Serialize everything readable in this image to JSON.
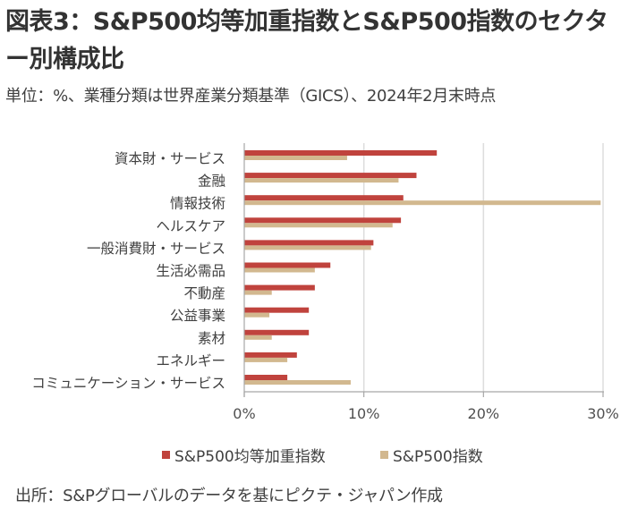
{
  "title": "図表3：S&P500均等加重指数とS&P500指数のセクター別構成比",
  "subtitle": "単位：%、業種分類は世界産業分類基準（GICS）、2024年2月末時点",
  "source": "出所：S&Pグローバルのデータを基にピクテ・ジャパン作成",
  "colors": {
    "equal_weight": "#C0433D",
    "cap_weight": "#D2B88F",
    "grid": "#DDDDDD",
    "axis": "#A6A6A6"
  },
  "chart_data": {
    "type": "bar",
    "orientation": "horizontal",
    "title": "S&P500均等加重指数とS&P500指数のセクター別構成比",
    "xlabel": "",
    "ylabel": "",
    "unit": "%",
    "xlim": [
      0,
      30
    ],
    "xticks": [
      0,
      10,
      20,
      30
    ],
    "xtick_labels": [
      "0%",
      "10%",
      "20%",
      "30%"
    ],
    "grid": "vertical",
    "legend_position": "bottom",
    "categories": [
      "資本財・サービス",
      "金融",
      "情報技術",
      "ヘルスケア",
      "一般消費財・サービス",
      "生活必需品",
      "不動産",
      "公益事業",
      "素材",
      "エネルギー",
      "コミュニケーション・サービス"
    ],
    "series": [
      {
        "name": "S&P500均等加重指数",
        "color_key": "equal_weight",
        "values": [
          16.1,
          14.4,
          13.3,
          13.1,
          10.8,
          7.2,
          5.9,
          5.4,
          5.4,
          4.4,
          3.6
        ]
      },
      {
        "name": "S&P500指数",
        "color_key": "cap_weight",
        "values": [
          8.6,
          12.9,
          29.8,
          12.4,
          10.6,
          5.9,
          2.3,
          2.1,
          2.3,
          3.6,
          8.9
        ]
      }
    ]
  }
}
